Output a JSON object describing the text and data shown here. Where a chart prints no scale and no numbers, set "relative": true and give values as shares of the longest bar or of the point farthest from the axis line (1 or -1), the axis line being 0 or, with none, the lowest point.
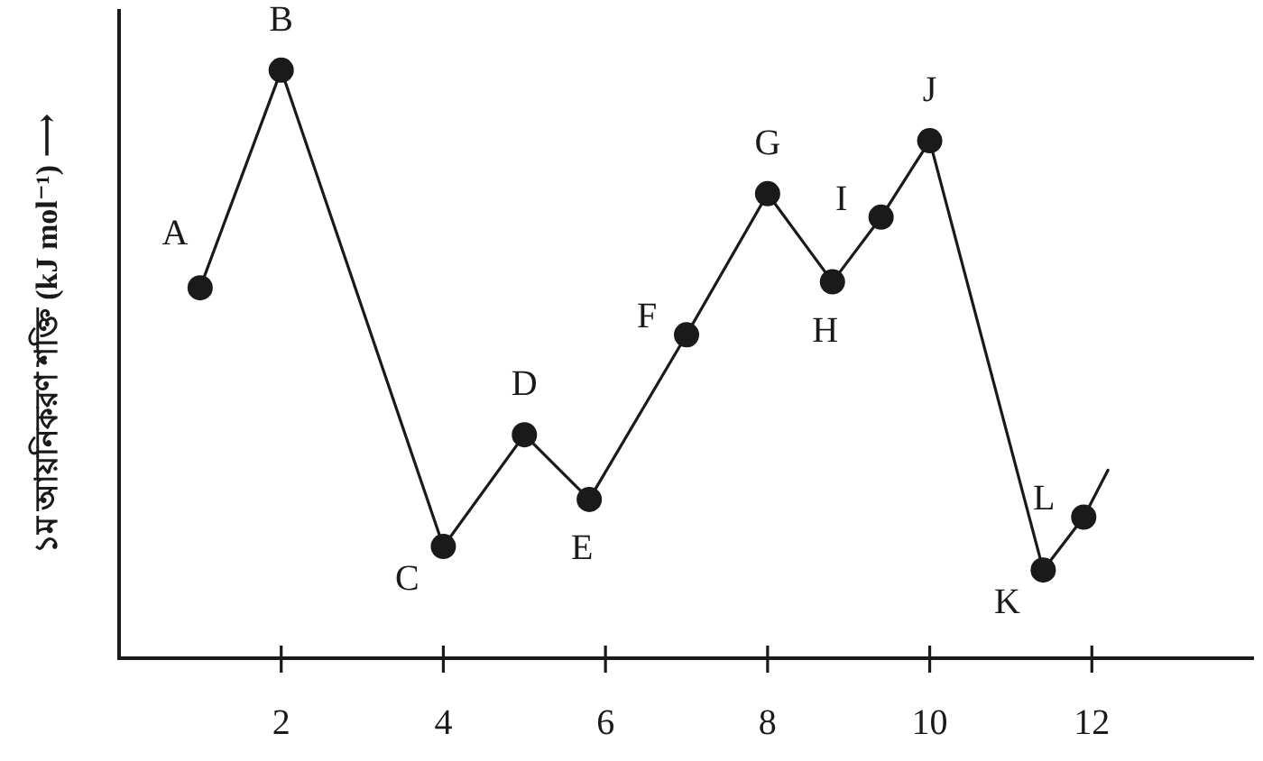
{
  "chart_data": {
    "type": "line",
    "relative": true,
    "ylabel": "১ম আয়নিকরণ শক্তি (kJ mol⁻¹) ⟶",
    "xlim": [
      0,
      14
    ],
    "xticks": [
      2,
      4,
      6,
      8,
      10,
      12
    ],
    "grid": false,
    "marker": "circle",
    "line_style": "solid",
    "series": [
      {
        "color": "#1a1a1a",
        "x": [
          1,
          2,
          4,
          5,
          5.8,
          7,
          8,
          8.8,
          9.4,
          10,
          11.4,
          11.9
        ],
        "values": [
          0.63,
          1,
          0.19,
          0.38,
          0.27,
          0.55,
          0.79,
          0.64,
          0.75,
          0.88,
          0.15,
          0.24
        ]
      },
      {
        "color": "#1a1a1a",
        "marker": "none",
        "x": [
          11.9,
          12.2
        ],
        "values": [
          0.24,
          0.32
        ]
      }
    ],
    "annotations": [
      {
        "text": "A",
        "x": 1,
        "y": 0.63
      },
      {
        "text": "B",
        "x": 2,
        "y": 1
      },
      {
        "text": "C",
        "x": 4,
        "y": 0.19
      },
      {
        "text": "D",
        "x": 5,
        "y": 0.38
      },
      {
        "text": "E",
        "x": 5.8,
        "y": 0.27
      },
      {
        "text": "F",
        "x": 7,
        "y": 0.55
      },
      {
        "text": "G",
        "x": 8,
        "y": 0.79
      },
      {
        "text": "H",
        "x": 8.8,
        "y": 0.64
      },
      {
        "text": "I",
        "x": 9.4,
        "y": 0.75
      },
      {
        "text": "J",
        "x": 10,
        "y": 0.88
      },
      {
        "text": "K",
        "x": 11.4,
        "y": 0.15
      },
      {
        "text": "L",
        "x": 11.9,
        "y": 0.24
      }
    ]
  }
}
